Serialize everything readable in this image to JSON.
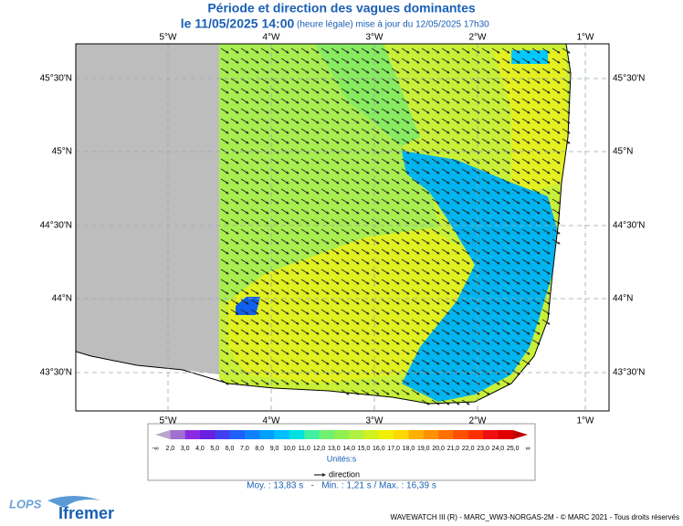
{
  "header": {
    "title": "Période et direction des vagues dominantes",
    "date": "le 11/05/2025 14:00",
    "update": "(heure légale) mise à jour du 12/05/2025 17h30"
  },
  "map": {
    "longitudes": [
      "5°W",
      "4°W",
      "3°W",
      "2°W",
      "1°W"
    ],
    "latitudes": [
      "45°30'N",
      "45°N",
      "44°30'N",
      "44°N",
      "43°30'N"
    ]
  },
  "colorbar": {
    "labels": [
      "-∞",
      "2,0",
      "3,0",
      "4,0",
      "5,0",
      "6,0",
      "7,0",
      "8,0",
      "9,0",
      "10,0",
      "11,0",
      "12,0",
      "13,0",
      "14,0",
      "15,0",
      "16,0",
      "17,0",
      "18,0",
      "19,0",
      "20,0",
      "21,0",
      "22,0",
      "23,0",
      "24,0",
      "25,0",
      "∞"
    ],
    "colors": [
      "#b9a6c8",
      "#a070d0",
      "#8a2be2",
      "#6a1ee0",
      "#4040f0",
      "#2060ff",
      "#1080ff",
      "#00a0ff",
      "#00c0ff",
      "#00e0e0",
      "#40f0a0",
      "#70f070",
      "#90f050",
      "#b0f040",
      "#d0f020",
      "#f0f000",
      "#ffd800",
      "#ffb000",
      "#ff9000",
      "#ff7000",
      "#ff5000",
      "#ff3000",
      "#f01010",
      "#e00000",
      "#c00000"
    ],
    "unit": "Unités:s",
    "direction": "direction",
    "stats": "Moy. : 13,83 s   -   Min. : 1,21 s / Max. : 16,39 s"
  },
  "footer": {
    "credits": "WAVEWATCH III (R) - MARC_WW3-NORGAS-2M - © MARC 2021 - Tous droits réservés",
    "logo1": "LOPS",
    "logo2": "Ifremer"
  }
}
